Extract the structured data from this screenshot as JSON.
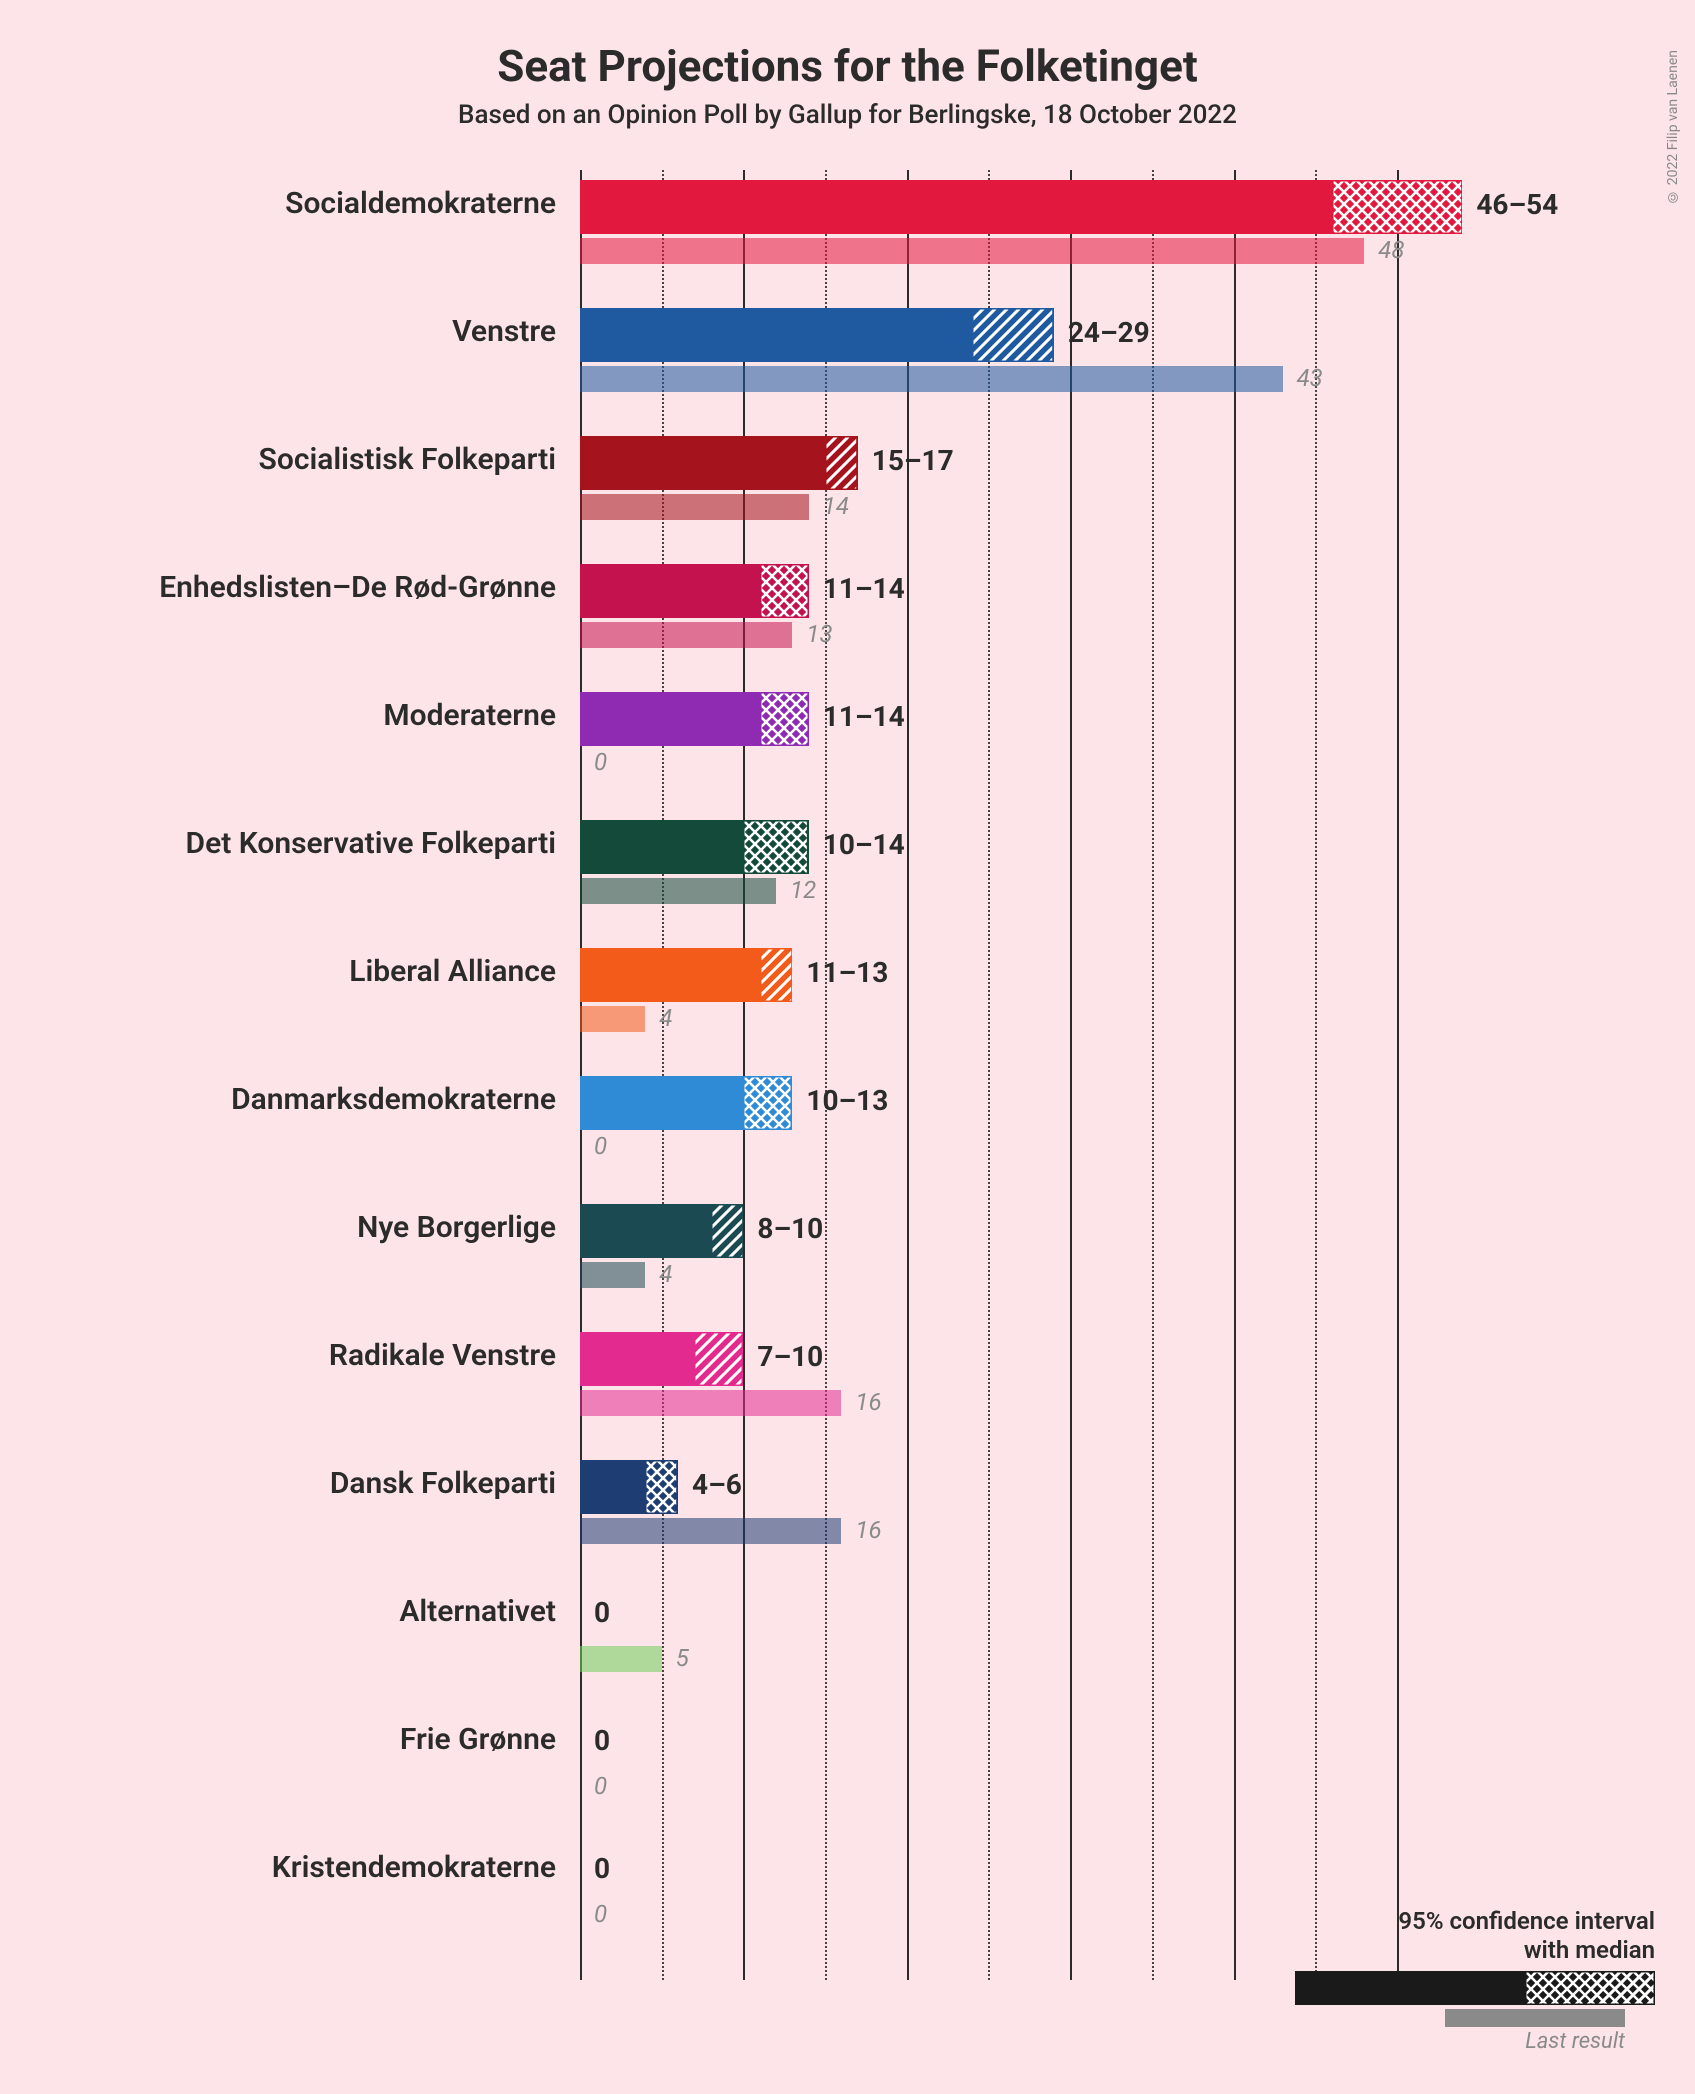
{
  "title": "Seat Projections for the Folketinget",
  "subtitle": "Based on an Opinion Poll by Gallup for Berlingske, 18 October 2022",
  "copyright": "© 2022 Filip van Laenen",
  "chart": {
    "type": "bar",
    "x_max": 56,
    "gridlines_major_step": 10,
    "gridlines_minor_step": 5,
    "background_color": "#fce4e9",
    "text_color": "#2b2b2b",
    "last_label_color": "#8a8a8a",
    "title_fontsize": 44,
    "subtitle_fontsize": 26,
    "label_fontsize": 30,
    "value_fontsize": 28,
    "last_fontsize": 24
  },
  "parties": [
    {
      "name": "Socialdemokraterne",
      "color": "#e3183e",
      "low": 46,
      "high": 54,
      "range_label": "46–54",
      "last": 48,
      "last_label": "48",
      "hatch": "cross"
    },
    {
      "name": "Venstre",
      "color": "#1f5aa0",
      "low": 24,
      "high": 29,
      "range_label": "24–29",
      "last": 43,
      "last_label": "43",
      "hatch": "diag"
    },
    {
      "name": "Socialistisk Folkeparti",
      "color": "#a5131c",
      "low": 15,
      "high": 17,
      "range_label": "15–17",
      "last": 14,
      "last_label": "14",
      "hatch": "diag"
    },
    {
      "name": "Enhedslisten–De Rød-Grønne",
      "color": "#c4124e",
      "low": 11,
      "high": 14,
      "range_label": "11–14",
      "last": 13,
      "last_label": "13",
      "hatch": "cross"
    },
    {
      "name": "Moderaterne",
      "color": "#8f2bb3",
      "low": 11,
      "high": 14,
      "range_label": "11–14",
      "last": 0,
      "last_label": "0",
      "hatch": "cross"
    },
    {
      "name": "Det Konservative Folkeparti",
      "color": "#134a3a",
      "low": 10,
      "high": 14,
      "range_label": "10–14",
      "last": 12,
      "last_label": "12",
      "hatch": "cross"
    },
    {
      "name": "Liberal Alliance",
      "color": "#f25b1a",
      "low": 11,
      "high": 13,
      "range_label": "11–13",
      "last": 4,
      "last_label": "4",
      "hatch": "diag"
    },
    {
      "name": "Danmarksdemokraterne",
      "color": "#2f8bd6",
      "low": 10,
      "high": 13,
      "range_label": "10–13",
      "last": 0,
      "last_label": "0",
      "hatch": "cross"
    },
    {
      "name": "Nye Borgerlige",
      "color": "#1b4a53",
      "low": 8,
      "high": 10,
      "range_label": "8–10",
      "last": 4,
      "last_label": "4",
      "hatch": "diag"
    },
    {
      "name": "Radikale Venstre",
      "color": "#e32b8f",
      "low": 7,
      "high": 10,
      "range_label": "7–10",
      "last": 16,
      "last_label": "16",
      "hatch": "diag"
    },
    {
      "name": "Dansk Folkeparti",
      "color": "#1d3d73",
      "low": 4,
      "high": 6,
      "range_label": "4–6",
      "last": 16,
      "last_label": "16",
      "hatch": "cross"
    },
    {
      "name": "Alternativet",
      "color": "#6fcf5a",
      "low": 0,
      "high": 0,
      "range_label": "0",
      "last": 5,
      "last_label": "5",
      "hatch": "diag"
    },
    {
      "name": "Frie Grønne",
      "color": "#5aa645",
      "low": 0,
      "high": 0,
      "range_label": "0",
      "last": 0,
      "last_label": "0",
      "hatch": "diag"
    },
    {
      "name": "Kristendemokraterne",
      "color": "#7a6a4f",
      "low": 0,
      "high": 0,
      "range_label": "0",
      "last": 0,
      "last_label": "0",
      "hatch": "diag"
    }
  ],
  "legend": {
    "title_line1": "95% confidence interval",
    "title_line2": "with median",
    "last_label": "Last result",
    "bar_color": "#1a1a1a",
    "last_color": "#8a8a8a"
  }
}
